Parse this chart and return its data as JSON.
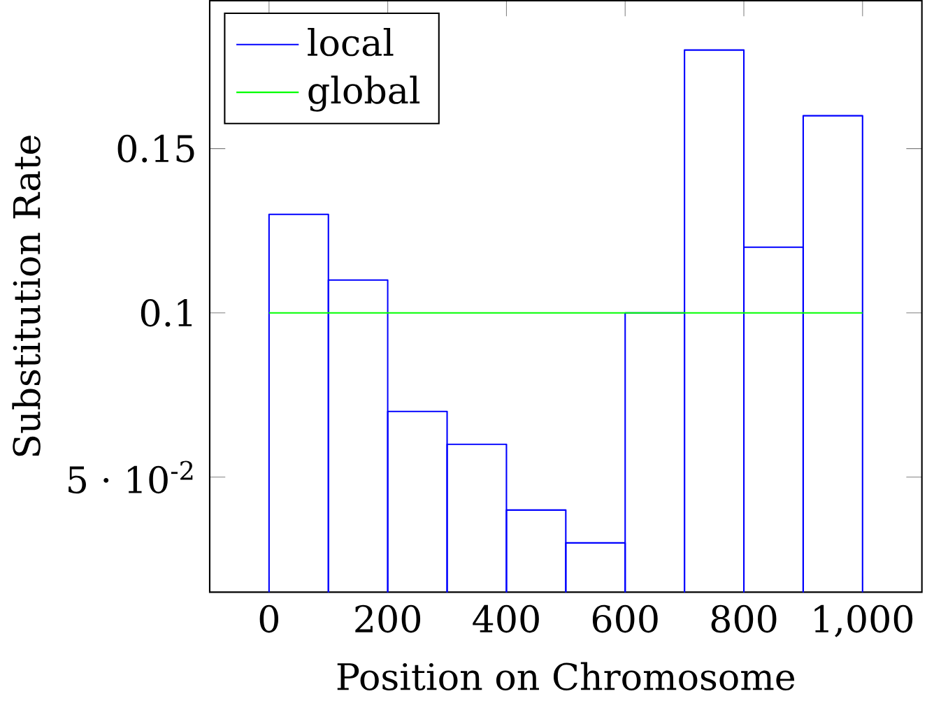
{
  "chart_data": {
    "type": "histogram",
    "xlabel": "Position on Chromosome",
    "ylabel": "Substitution Rate",
    "bins": [
      0,
      100,
      200,
      300,
      400,
      500,
      600,
      700,
      800,
      900,
      1000
    ],
    "series": [
      {
        "name": "local",
        "type": "histogram",
        "color": "#0000ff",
        "values": [
          0.13,
          0.11,
          0.07,
          0.06,
          0.04,
          0.03,
          0.1,
          0.18,
          0.12,
          0.16
        ]
      },
      {
        "name": "global",
        "type": "line",
        "color": "#00ff00",
        "x": [
          0,
          1000
        ],
        "values": [
          0.1,
          0.1
        ]
      }
    ],
    "xlim": [
      -100,
      1100
    ],
    "ylim": [
      0.015,
      0.195
    ],
    "xticks": [
      0,
      200,
      400,
      600,
      800,
      {
        "value": 1000,
        "label": "1,000"
      }
    ],
    "yticks": [
      {
        "value": 0.05,
        "label": "5 · 10$^{-2}$"
      },
      0.1,
      0.15
    ],
    "legend": "top left",
    "grid": false
  }
}
